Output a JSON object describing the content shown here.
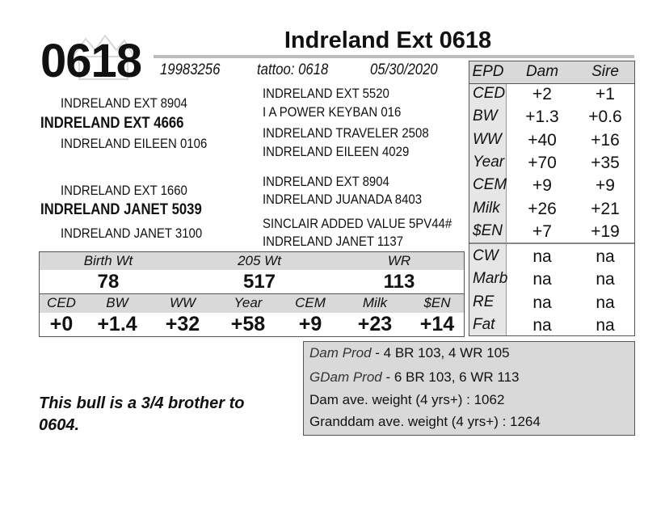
{
  "title": "Indreland Ext 0618",
  "lot": "0618",
  "registration": "19983256",
  "tattoo": "tattoo: 0618",
  "birth_date": "05/30/2020",
  "pedigree": {
    "sire": "INDRELAND EXT 4666",
    "sire_sire": "INDRELAND EXT 8904",
    "sire_dam": "INDRELAND EILEEN 0106",
    "dam": "INDRELAND JANET 5039",
    "dam_sire": "INDRELAND EXT 1660",
    "dam_dam": "INDRELAND JANET 3100",
    "ggp": [
      "INDRELAND EXT 5520",
      "I A POWER KEYBAN 016",
      "INDRELAND TRAVELER 2508",
      "INDRELAND EILEEN 4029",
      "INDRELAND EXT 8904",
      "INDRELAND JUANADA 8403",
      "SINCLAIR ADDED VALUE 5PV44#",
      "INDRELAND JANET 1137"
    ]
  },
  "epd_table": {
    "headers": [
      "EPD",
      "Dam",
      "Sire"
    ],
    "rows": [
      {
        "label": "CED",
        "dam": "+2",
        "sire": "+1"
      },
      {
        "label": "BW",
        "dam": "+1.3",
        "sire": "+0.6"
      },
      {
        "label": "WW",
        "dam": "+40",
        "sire": "+16"
      },
      {
        "label": "Year",
        "dam": "+70",
        "sire": "+35"
      },
      {
        "label": "CEM",
        "dam": "+9",
        "sire": "+9"
      },
      {
        "label": "Milk",
        "dam": "+26",
        "sire": "+21"
      },
      {
        "label": "$EN",
        "dam": "+7",
        "sire": "+19"
      },
      {
        "label": "CW",
        "dam": "na",
        "sire": "na"
      },
      {
        "label": "Marb",
        "dam": "na",
        "sire": "na"
      },
      {
        "label": "RE",
        "dam": "na",
        "sire": "na"
      },
      {
        "label": "Fat",
        "dam": "na",
        "sire": "na"
      }
    ]
  },
  "performance": {
    "headers": [
      "Birth Wt",
      "205 Wt",
      "WR"
    ],
    "values": [
      "78",
      "517",
      "113"
    ]
  },
  "own_epds": {
    "labels": [
      "CED",
      "BW",
      "WW",
      "Year",
      "CEM",
      "Milk",
      "$EN"
    ],
    "values": [
      "+0",
      "+1.4",
      "+32",
      "+58",
      "+9",
      "+23",
      "+14"
    ]
  },
  "notes": {
    "dam_prod_label": "Dam Prod",
    "dam_prod": " - 4 BR 103, 4 WR 105",
    "gdam_prod_label": "GDam Prod",
    "gdam_prod": " - 6 BR 103, 6 WR 113",
    "dam_weight": "Dam ave. weight (4 yrs+) : 1062",
    "granddam_weight": "Granddam ave. weight (4 yrs+) : 1264"
  },
  "comment": "This bull is a 3/4 brother to 0604."
}
